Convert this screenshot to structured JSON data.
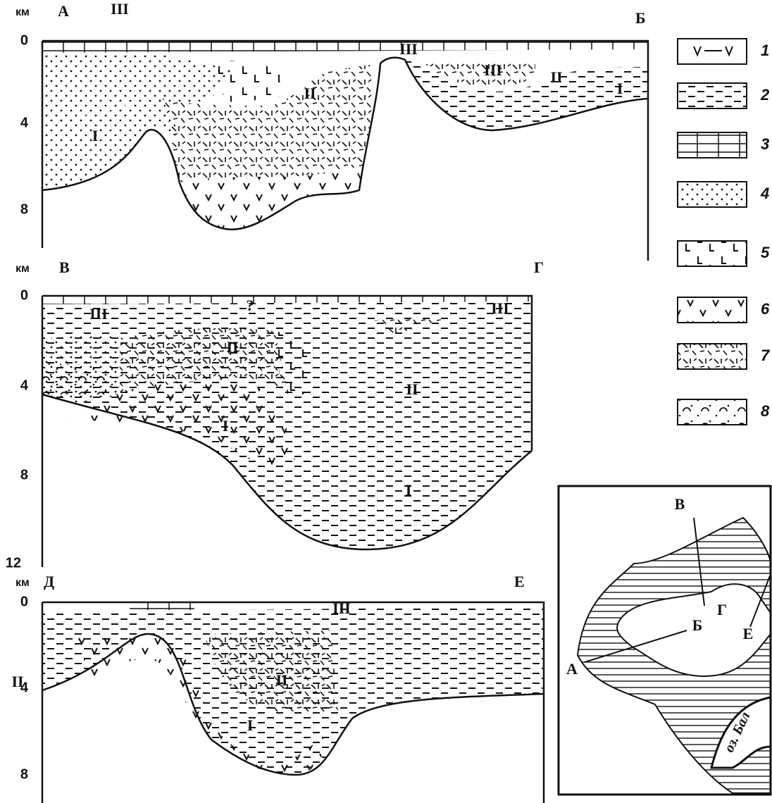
{
  "sections": [
    {
      "unit": "км",
      "start": "А",
      "end": "Б",
      "depths": [
        "0",
        "4",
        "8"
      ],
      "labels": [
        "III",
        "III",
        "III",
        "II",
        "I",
        "II",
        "I"
      ]
    },
    {
      "unit": "км",
      "start": "В",
      "end": "Г",
      "depths": [
        "0",
        "4",
        "8",
        "12"
      ],
      "labels": [
        "III",
        "?",
        "III",
        "II",
        "II",
        "I",
        "I"
      ]
    },
    {
      "unit": "км",
      "start": "Д",
      "end": "Е",
      "depths": [
        "0",
        "4",
        "8"
      ],
      "labels": [
        "III",
        "II",
        "II",
        "I"
      ]
    }
  ],
  "legend": [
    "1",
    "2",
    "3",
    "4",
    "5",
    "6",
    "7",
    "8"
  ],
  "map": {
    "labels": [
      "В",
      "Г",
      "Б",
      "А",
      "Е",
      "оз. Бал"
    ]
  }
}
